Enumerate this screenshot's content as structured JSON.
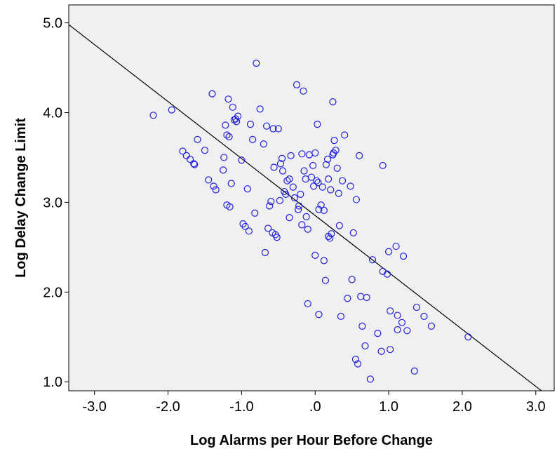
{
  "chart_data": {
    "type": "scatter",
    "xlabel": "Log Alarms per Hour Before Change",
    "ylabel": "Log Delay Change Limit",
    "xlim": [
      -3.35,
      3.25
    ],
    "ylim": [
      0.9,
      5.2
    ],
    "x_ticks": [
      -3.0,
      -2.0,
      -1.0,
      0.0,
      1.0,
      2.0,
      3.0
    ],
    "x_tick_labels": [
      "-3.0",
      "-2.0",
      "-1.0",
      ".0",
      "1.0",
      "2.0",
      "3.0"
    ],
    "y_ticks": [
      1.0,
      2.0,
      3.0,
      4.0,
      5.0
    ],
    "y_tick_labels": [
      "1.0",
      "2.0",
      "3.0",
      "4.0",
      "5.0"
    ],
    "grid": false,
    "colors": {
      "plot_background": "#f0f0f0",
      "marker": "#1f1fe0",
      "fit_line": "#000000"
    },
    "fit_line": {
      "x": [
        -3.35,
        3.25
      ],
      "y": [
        4.98,
        0.79
      ]
    },
    "points": [
      {
        "x": -2.2,
        "y": 3.97
      },
      {
        "x": -1.95,
        "y": 4.03
      },
      {
        "x": -1.8,
        "y": 3.57
      },
      {
        "x": -1.75,
        "y": 3.52
      },
      {
        "x": -1.7,
        "y": 3.48
      },
      {
        "x": -1.65,
        "y": 3.43
      },
      {
        "x": -1.64,
        "y": 3.42
      },
      {
        "x": -1.6,
        "y": 3.7
      },
      {
        "x": -1.5,
        "y": 3.58
      },
      {
        "x": -1.45,
        "y": 3.25
      },
      {
        "x": -1.4,
        "y": 4.21
      },
      {
        "x": -1.38,
        "y": 3.18
      },
      {
        "x": -1.35,
        "y": 3.14
      },
      {
        "x": -1.25,
        "y": 3.36
      },
      {
        "x": -1.24,
        "y": 3.5
      },
      {
        "x": -1.22,
        "y": 3.86
      },
      {
        "x": -1.2,
        "y": 3.75
      },
      {
        "x": -1.18,
        "y": 4.15
      },
      {
        "x": -1.17,
        "y": 3.73
      },
      {
        "x": -1.2,
        "y": 2.97
      },
      {
        "x": -1.16,
        "y": 2.95
      },
      {
        "x": -1.14,
        "y": 3.21
      },
      {
        "x": -1.12,
        "y": 4.06
      },
      {
        "x": -1.1,
        "y": 3.92
      },
      {
        "x": -1.08,
        "y": 3.93
      },
      {
        "x": -1.07,
        "y": 3.9
      },
      {
        "x": -1.05,
        "y": 3.96
      },
      {
        "x": -1.0,
        "y": 3.47
      },
      {
        "x": -0.98,
        "y": 2.76
      },
      {
        "x": -0.95,
        "y": 2.73
      },
      {
        "x": -0.92,
        "y": 3.15
      },
      {
        "x": -0.9,
        "y": 2.68
      },
      {
        "x": -0.88,
        "y": 3.87
      },
      {
        "x": -0.85,
        "y": 3.7
      },
      {
        "x": -0.82,
        "y": 2.88
      },
      {
        "x": -0.8,
        "y": 4.55
      },
      {
        "x": -0.75,
        "y": 4.04
      },
      {
        "x": -0.7,
        "y": 3.65
      },
      {
        "x": -0.68,
        "y": 2.44
      },
      {
        "x": -0.66,
        "y": 3.85
      },
      {
        "x": -0.64,
        "y": 2.71
      },
      {
        "x": -0.62,
        "y": 2.96
      },
      {
        "x": -0.6,
        "y": 3.01
      },
      {
        "x": -0.58,
        "y": 2.66
      },
      {
        "x": -0.57,
        "y": 3.82
      },
      {
        "x": -0.56,
        "y": 3.39
      },
      {
        "x": -0.54,
        "y": 2.64
      },
      {
        "x": -0.52,
        "y": 2.61
      },
      {
        "x": -0.5,
        "y": 3.82
      },
      {
        "x": -0.48,
        "y": 3.02
      },
      {
        "x": -0.47,
        "y": 3.43
      },
      {
        "x": -0.45,
        "y": 3.49
      },
      {
        "x": -0.44,
        "y": 3.35
      },
      {
        "x": -0.42,
        "y": 3.12
      },
      {
        "x": -0.4,
        "y": 3.09
      },
      {
        "x": -0.38,
        "y": 3.24
      },
      {
        "x": -0.35,
        "y": 3.26
      },
      {
        "x": -0.35,
        "y": 2.83
      },
      {
        "x": -0.33,
        "y": 3.52
      },
      {
        "x": -0.3,
        "y": 3.17
      },
      {
        "x": -0.28,
        "y": 3.05
      },
      {
        "x": -0.25,
        "y": 4.31
      },
      {
        "x": -0.23,
        "y": 2.92
      },
      {
        "x": -0.22,
        "y": 2.96
      },
      {
        "x": -0.2,
        "y": 3.09
      },
      {
        "x": -0.18,
        "y": 2.75
      },
      {
        "x": -0.18,
        "y": 3.54
      },
      {
        "x": -0.16,
        "y": 4.24
      },
      {
        "x": -0.15,
        "y": 3.35
      },
      {
        "x": -0.13,
        "y": 3.26
      },
      {
        "x": -0.12,
        "y": 2.84
      },
      {
        "x": -0.1,
        "y": 2.7
      },
      {
        "x": -0.1,
        "y": 1.87
      },
      {
        "x": -0.08,
        "y": 3.53
      },
      {
        "x": -0.05,
        "y": 3.28
      },
      {
        "x": -0.03,
        "y": 3.41
      },
      {
        "x": -0.02,
        "y": 3.18
      },
      {
        "x": 0.0,
        "y": 2.41
      },
      {
        "x": 0.0,
        "y": 3.55
      },
      {
        "x": 0.02,
        "y": 3.24
      },
      {
        "x": 0.03,
        "y": 3.87
      },
      {
        "x": 0.04,
        "y": 3.22
      },
      {
        "x": 0.05,
        "y": 2.92
      },
      {
        "x": 0.05,
        "y": 1.75
      },
      {
        "x": 0.08,
        "y": 2.97
      },
      {
        "x": 0.1,
        "y": 3.17
      },
      {
        "x": 0.12,
        "y": 2.91
      },
      {
        "x": 0.12,
        "y": 2.35
      },
      {
        "x": 0.14,
        "y": 2.13
      },
      {
        "x": 0.15,
        "y": 3.42
      },
      {
        "x": 0.17,
        "y": 3.48
      },
      {
        "x": 0.18,
        "y": 2.62
      },
      {
        "x": 0.18,
        "y": 3.26
      },
      {
        "x": 0.2,
        "y": 2.6
      },
      {
        "x": 0.21,
        "y": 3.14
      },
      {
        "x": 0.22,
        "y": 2.65
      },
      {
        "x": 0.24,
        "y": 4.12
      },
      {
        "x": 0.24,
        "y": 3.53
      },
      {
        "x": 0.25,
        "y": 3.55
      },
      {
        "x": 0.26,
        "y": 3.69
      },
      {
        "x": 0.28,
        "y": 3.58
      },
      {
        "x": 0.3,
        "y": 3.38
      },
      {
        "x": 0.32,
        "y": 3.1
      },
      {
        "x": 0.33,
        "y": 2.74
      },
      {
        "x": 0.35,
        "y": 1.73
      },
      {
        "x": 0.37,
        "y": 3.24
      },
      {
        "x": 0.4,
        "y": 3.75
      },
      {
        "x": 0.44,
        "y": 1.93
      },
      {
        "x": 0.48,
        "y": 3.18
      },
      {
        "x": 0.5,
        "y": 2.14
      },
      {
        "x": 0.52,
        "y": 2.66
      },
      {
        "x": 0.55,
        "y": 1.25
      },
      {
        "x": 0.56,
        "y": 3.03
      },
      {
        "x": 0.58,
        "y": 1.2
      },
      {
        "x": 0.6,
        "y": 3.52
      },
      {
        "x": 0.62,
        "y": 1.95
      },
      {
        "x": 0.64,
        "y": 1.62
      },
      {
        "x": 0.68,
        "y": 1.4
      },
      {
        "x": 0.7,
        "y": 1.94
      },
      {
        "x": 0.75,
        "y": 1.03
      },
      {
        "x": 0.78,
        "y": 2.36
      },
      {
        "x": 0.85,
        "y": 1.54
      },
      {
        "x": 0.9,
        "y": 1.34
      },
      {
        "x": 0.92,
        "y": 3.41
      },
      {
        "x": 0.92,
        "y": 2.23
      },
      {
        "x": 0.98,
        "y": 2.2
      },
      {
        "x": 1.0,
        "y": 2.45
      },
      {
        "x": 1.02,
        "y": 1.79
      },
      {
        "x": 1.02,
        "y": 1.36
      },
      {
        "x": 1.1,
        "y": 2.51
      },
      {
        "x": 1.12,
        "y": 1.74
      },
      {
        "x": 1.12,
        "y": 1.58
      },
      {
        "x": 1.18,
        "y": 1.66
      },
      {
        "x": 1.2,
        "y": 2.4
      },
      {
        "x": 1.25,
        "y": 1.57
      },
      {
        "x": 1.35,
        "y": 1.12
      },
      {
        "x": 1.38,
        "y": 1.83
      },
      {
        "x": 1.48,
        "y": 1.73
      },
      {
        "x": 1.58,
        "y": 1.62
      },
      {
        "x": 2.08,
        "y": 1.5
      }
    ]
  }
}
